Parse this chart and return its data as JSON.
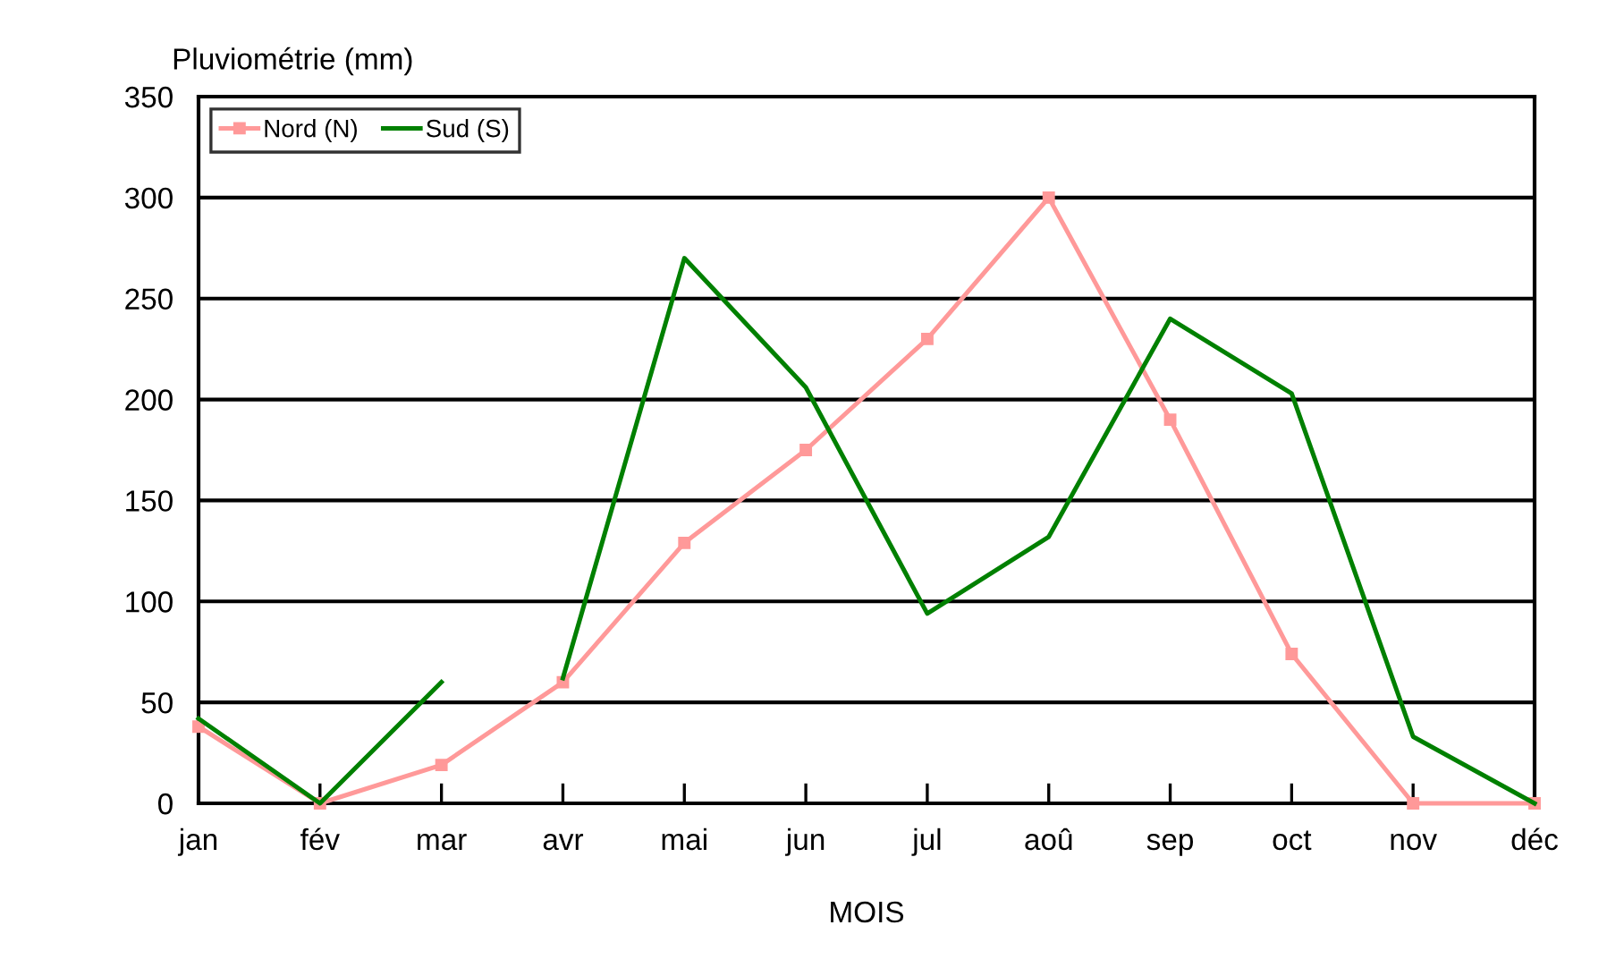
{
  "chart_data": {
    "type": "line",
    "ylabel": "Pluviométrie (mm)",
    "xlabel": "MOIS",
    "categories": [
      "jan",
      "fév",
      "mar",
      "avr",
      "mai",
      "jun",
      "jul",
      "aoû",
      "sep",
      "oct",
      "nov",
      "déc"
    ],
    "series": [
      {
        "name": "Nord (N)",
        "color": "#ff9999",
        "marker": "square",
        "values": [
          38,
          0,
          19,
          60,
          129,
          175,
          230,
          300,
          190,
          74,
          0,
          0
        ]
      },
      {
        "name": "Sud (S)",
        "color": "#008000",
        "marker": "none",
        "values": [
          42,
          0,
          60,
          null,
          null,
          null,
          null,
          null,
          null,
          null,
          null,
          null
        ]
      },
      {
        "color": "#008000",
        "marker": "none",
        "values": [
          null,
          null,
          null,
          62,
          270,
          206,
          94,
          132,
          240,
          203,
          33,
          0
        ]
      }
    ],
    "ylim": [
      0,
      350
    ],
    "yticks": [
      0,
      50,
      100,
      150,
      200,
      250,
      300,
      350
    ],
    "grid": "y",
    "legend": "top left",
    "line_style": "solid"
  }
}
